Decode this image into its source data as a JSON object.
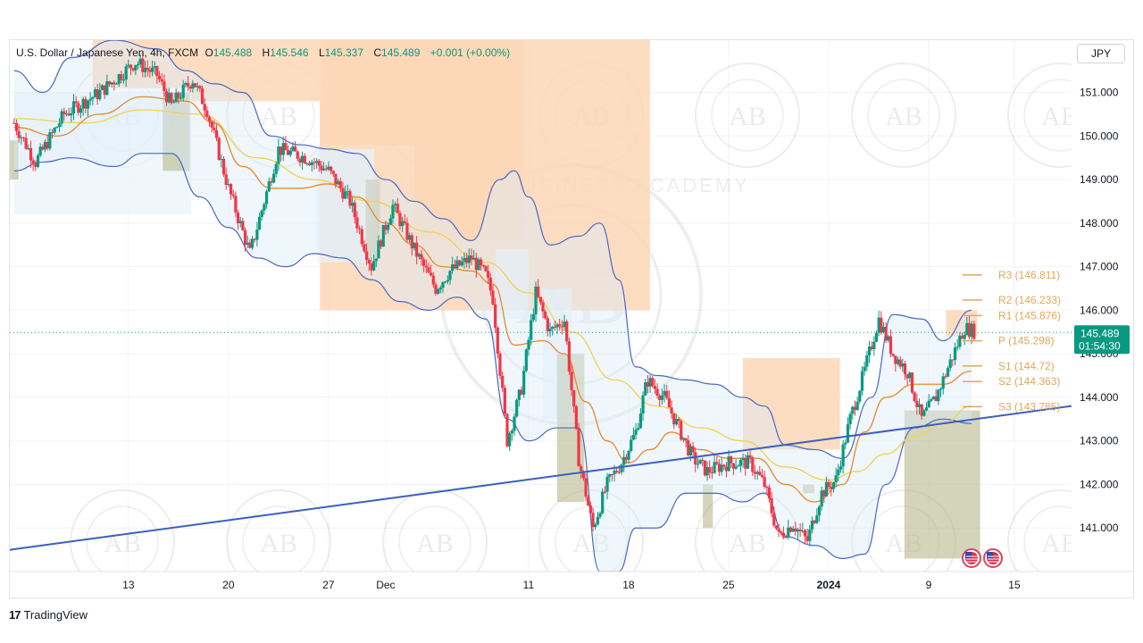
{
  "legend": {
    "symbol": "U.S. Dollar / Japanese Yen, 4h, FXCM",
    "o_label": "O",
    "o": "145.488",
    "h_label": "H",
    "h": "145.546",
    "l_label": "L",
    "l": "145.337",
    "c_label": "C",
    "c": "145.489",
    "change": "+0.001 (+0.00%)"
  },
  "currency_button": "JPY",
  "brand": {
    "name": "TradingView",
    "logo": "17"
  },
  "watermark": {
    "text": "AB",
    "ring_text": "ARABIAN BUSINESS ACADEMY"
  },
  "price_label": {
    "price": "145.489",
    "countdown": "01:54:30"
  },
  "colors": {
    "bull": "#089981",
    "bear": "#f23645",
    "trendline": "#3b5fc0",
    "bb_band": "#4a68c0",
    "ema_fast": "#e8892a",
    "ema_slow": "#f2d24b",
    "supply_zone": "#fbd7b6",
    "demand_zone": "#b5b78a",
    "pivot": "#e0a85a",
    "label_bg": "#089981"
  },
  "chart_data": {
    "type": "candlestick",
    "title": "U.S. Dollar / Japanese Yen, 4h, FXCM",
    "y_ticks": [
      "141.000",
      "142.000",
      "143.000",
      "144.000",
      "145.000",
      "146.000",
      "147.000",
      "148.000",
      "149.000",
      "150.000",
      "151.000"
    ],
    "ylim": [
      140.0,
      152.2
    ],
    "x_ticks": [
      {
        "label": "13",
        "day": 13
      },
      {
        "label": "20",
        "day": 20
      },
      {
        "label": "27",
        "day": 27
      },
      {
        "label": "Dec",
        "day": 31
      },
      {
        "label": "11",
        "day": 41
      },
      {
        "label": "18",
        "day": 48
      },
      {
        "label": "25",
        "day": 55
      },
      {
        "label": "2024",
        "day": 62
      },
      {
        "label": "9",
        "day": 69
      },
      {
        "label": "15",
        "day": 75
      }
    ],
    "xlim": [
      4.7,
      79.0
    ],
    "current_price": 145.489,
    "pivots": [
      {
        "name": "R3",
        "value": 146.811,
        "label": "R3  (146.811)"
      },
      {
        "name": "R2",
        "value": 146.233,
        "label": "R2  (146.233)"
      },
      {
        "name": "R1",
        "value": 145.876,
        "label": "R1  (145.876)"
      },
      {
        "name": "P",
        "value": 145.298,
        "label": "P  (145.298)"
      },
      {
        "name": "S1",
        "value": 144.72,
        "label": "S1  (144.72)"
      },
      {
        "name": "S2",
        "value": 144.363,
        "label": "S2  (144.363)"
      },
      {
        "name": "S3",
        "value": 143.785,
        "label": "S3  (143.785)"
      }
    ],
    "trendline": {
      "x": [
        4.7,
        79.0
      ],
      "y": [
        140.5,
        143.8
      ]
    },
    "price_path": [
      [
        5,
        150.3
      ],
      [
        6.5,
        149.4
      ],
      [
        8.5,
        150.5
      ],
      [
        11,
        151.0
      ],
      [
        13.5,
        151.7
      ],
      [
        15,
        151.4
      ],
      [
        16,
        150.7
      ],
      [
        17.5,
        151.3
      ],
      [
        18.5,
        150.6
      ],
      [
        20,
        148.8
      ],
      [
        21.5,
        147.3
      ],
      [
        23.5,
        149.7
      ],
      [
        25.5,
        149.5
      ],
      [
        27,
        149.2
      ],
      [
        28.5,
        148.5
      ],
      [
        30,
        147.0
      ],
      [
        31.5,
        148.4
      ],
      [
        33,
        147.4
      ],
      [
        34.5,
        146.5
      ],
      [
        35.5,
        146.9
      ],
      [
        37,
        147.2
      ],
      [
        38,
        146.8
      ],
      [
        38.5,
        146.3
      ],
      [
        39.5,
        143.0
      ],
      [
        40.5,
        144.2
      ],
      [
        41.5,
        146.4
      ],
      [
        42.5,
        145.5
      ],
      [
        43.5,
        145.8
      ],
      [
        44.5,
        142.6
      ],
      [
        45.5,
        141.0
      ],
      [
        46.5,
        142.0
      ],
      [
        47.5,
        142.5
      ],
      [
        48.5,
        143.2
      ],
      [
        49.3,
        144.4
      ],
      [
        50.5,
        144.0
      ],
      [
        51.5,
        143.3
      ],
      [
        52.5,
        142.6
      ],
      [
        53.5,
        142.3
      ],
      [
        55,
        142.5
      ],
      [
        56.5,
        142.5
      ],
      [
        57.5,
        142.0
      ],
      [
        58.5,
        140.8
      ],
      [
        59.5,
        141.1
      ],
      [
        60.5,
        140.7
      ],
      [
        61.5,
        141.8
      ],
      [
        62.5,
        142.1
      ],
      [
        63.5,
        143.5
      ],
      [
        64.5,
        144.6
      ],
      [
        65.5,
        145.8
      ],
      [
        66.5,
        145.0
      ],
      [
        67.5,
        144.6
      ],
      [
        68.5,
        143.5
      ],
      [
        69.5,
        144.0
      ],
      [
        70.5,
        144.8
      ],
      [
        71.5,
        145.6
      ],
      [
        72.3,
        145.5
      ]
    ],
    "bb_upper": [
      [
        5,
        151.5
      ],
      [
        7,
        151.0
      ],
      [
        9,
        151.8
      ],
      [
        12,
        152.2
      ],
      [
        15,
        152.0
      ],
      [
        17,
        151.5
      ],
      [
        19,
        151.2
      ],
      [
        21,
        151.0
      ],
      [
        23,
        150.0
      ],
      [
        25,
        149.8
      ],
      [
        27,
        149.7
      ],
      [
        29,
        149.6
      ],
      [
        31,
        149.0
      ],
      [
        33,
        148.5
      ],
      [
        35,
        148.1
      ],
      [
        37,
        147.6
      ],
      [
        39,
        149.0
      ],
      [
        40,
        149.2
      ],
      [
        41,
        148.6
      ],
      [
        42.5,
        147.5
      ],
      [
        44.5,
        147.7
      ],
      [
        46,
        148.0
      ],
      [
        47.3,
        146.7
      ],
      [
        48.5,
        144.7
      ],
      [
        50,
        144.5
      ],
      [
        52,
        144.4
      ],
      [
        54,
        144.3
      ],
      [
        56,
        144.0
      ],
      [
        57.5,
        143.8
      ],
      [
        59,
        142.9
      ],
      [
        61,
        142.8
      ],
      [
        63,
        142.6
      ],
      [
        65,
        144.0
      ],
      [
        66.5,
        145.9
      ],
      [
        68.5,
        145.8
      ],
      [
        70,
        145.3
      ],
      [
        72,
        146.0
      ]
    ],
    "bb_lower": [
      [
        5,
        149.2
      ],
      [
        7,
        149.4
      ],
      [
        9,
        149.5
      ],
      [
        12,
        149.3
      ],
      [
        14,
        149.6
      ],
      [
        16,
        149.6
      ],
      [
        18,
        148.6
      ],
      [
        20,
        147.9
      ],
      [
        22,
        147.2
      ],
      [
        24,
        147.0
      ],
      [
        26,
        147.3
      ],
      [
        28,
        147.2
      ],
      [
        30,
        146.7
      ],
      [
        32,
        146.2
      ],
      [
        34,
        146.0
      ],
      [
        36,
        146.3
      ],
      [
        38,
        145.8
      ],
      [
        39.5,
        143.5
      ],
      [
        41,
        143.0
      ],
      [
        43,
        143.3
      ],
      [
        44.5,
        143.3
      ],
      [
        46,
        140.0
      ],
      [
        47.3,
        140.0
      ],
      [
        48.5,
        141.0
      ],
      [
        50,
        141.0
      ],
      [
        52,
        141.8
      ],
      [
        54,
        141.8
      ],
      [
        56,
        141.6
      ],
      [
        57.5,
        141.8
      ],
      [
        59,
        140.8
      ],
      [
        61,
        140.6
      ],
      [
        63,
        140.3
      ],
      [
        64.5,
        140.4
      ],
      [
        66,
        142.0
      ],
      [
        68,
        143.3
      ],
      [
        70,
        143.5
      ],
      [
        72,
        143.4
      ]
    ],
    "ema_fast": [
      [
        5,
        150.2
      ],
      [
        8,
        150.0
      ],
      [
        11,
        150.5
      ],
      [
        14,
        150.9
      ],
      [
        17,
        150.8
      ],
      [
        19,
        150.3
      ],
      [
        21,
        149.3
      ],
      [
        23,
        148.8
      ],
      [
        25,
        148.8
      ],
      [
        27,
        148.9
      ],
      [
        29,
        148.6
      ],
      [
        31,
        148.0
      ],
      [
        33,
        147.5
      ],
      [
        35,
        147.0
      ],
      [
        37,
        146.9
      ],
      [
        38.5,
        146.6
      ],
      [
        40,
        145.2
      ],
      [
        42,
        145.3
      ],
      [
        43.5,
        145.0
      ],
      [
        45,
        143.9
      ],
      [
        46.5,
        143.0
      ],
      [
        48,
        142.5
      ],
      [
        49.5,
        142.8
      ],
      [
        51,
        143.2
      ],
      [
        53,
        142.8
      ],
      [
        55,
        142.6
      ],
      [
        57,
        142.6
      ],
      [
        59,
        142.0
      ],
      [
        61,
        141.6
      ],
      [
        63,
        142.0
      ],
      [
        64.5,
        143.2
      ],
      [
        66,
        144.0
      ],
      [
        68,
        144.3
      ],
      [
        70,
        144.3
      ],
      [
        72,
        144.6
      ]
    ],
    "ema_slow": [
      [
        5,
        150.4
      ],
      [
        10,
        150.3
      ],
      [
        14,
        150.6
      ],
      [
        18,
        150.5
      ],
      [
        22,
        149.5
      ],
      [
        26,
        149.0
      ],
      [
        30,
        148.5
      ],
      [
        34,
        147.8
      ],
      [
        38,
        147.1
      ],
      [
        41,
        146.4
      ],
      [
        44,
        145.5
      ],
      [
        47,
        144.4
      ],
      [
        50,
        143.8
      ],
      [
        53,
        143.3
      ],
      [
        56,
        143.0
      ],
      [
        59,
        142.4
      ],
      [
        62,
        142.1
      ],
      [
        64,
        142.3
      ],
      [
        66,
        142.7
      ],
      [
        68,
        143.1
      ],
      [
        70,
        143.4
      ],
      [
        72,
        143.8
      ]
    ],
    "supply_zones": [
      {
        "x0": 10.5,
        "x1": 17.4,
        "y0": 151.1,
        "y1": 152.2
      },
      {
        "x0": 17.4,
        "x1": 26.4,
        "y0": 150.8,
        "y1": 152.2
      },
      {
        "x0": 26.4,
        "x1": 49.5,
        "y0": 146.0,
        "y1": 152.2
      },
      {
        "x0": 26.4,
        "x1": 33.0,
        "y0": 149.8,
        "y1": 152.2
      },
      {
        "x0": 33.0,
        "x1": 40.6,
        "y0": 147.6,
        "y1": 152.2
      },
      {
        "x0": 56.0,
        "x1": 62.8,
        "y0": 142.8,
        "y1": 144.9
      },
      {
        "x0": 70.2,
        "x1": 72.4,
        "y0": 145.4,
        "y1": 146.0
      }
    ],
    "supply_zone_outlines": [
      {
        "x0": 5.0,
        "x1": 17.4,
        "y0": 148.2,
        "y1": 151.0
      },
      {
        "x0": 26.2,
        "x1": 30.2,
        "y0": 147.1,
        "y1": 149.7
      },
      {
        "x0": 38.7,
        "x1": 41.0,
        "y0": 145.8,
        "y1": 147.4
      },
      {
        "x0": 42.0,
        "x1": 44.0,
        "y0": 143.5,
        "y1": 146.5
      }
    ],
    "demand_zones": [
      {
        "x0": 4.7,
        "x1": 5.3,
        "y0": 149.0,
        "y1": 149.9
      },
      {
        "x0": 15.4,
        "x1": 17.3,
        "y0": 149.2,
        "y1": 151.0
      },
      {
        "x0": 29.6,
        "x1": 30.6,
        "y0": 147.2,
        "y1": 149.0
      },
      {
        "x0": 43.0,
        "x1": 44.9,
        "y0": 141.6,
        "y1": 145.0
      },
      {
        "x0": 53.2,
        "x1": 53.9,
        "y0": 141.0,
        "y1": 142.0
      },
      {
        "x0": 60.2,
        "x1": 61.0,
        "y0": 141.8,
        "y1": 142.0
      },
      {
        "x0": 67.3,
        "x1": 72.6,
        "y0": 140.3,
        "y1": 143.7
      }
    ]
  }
}
